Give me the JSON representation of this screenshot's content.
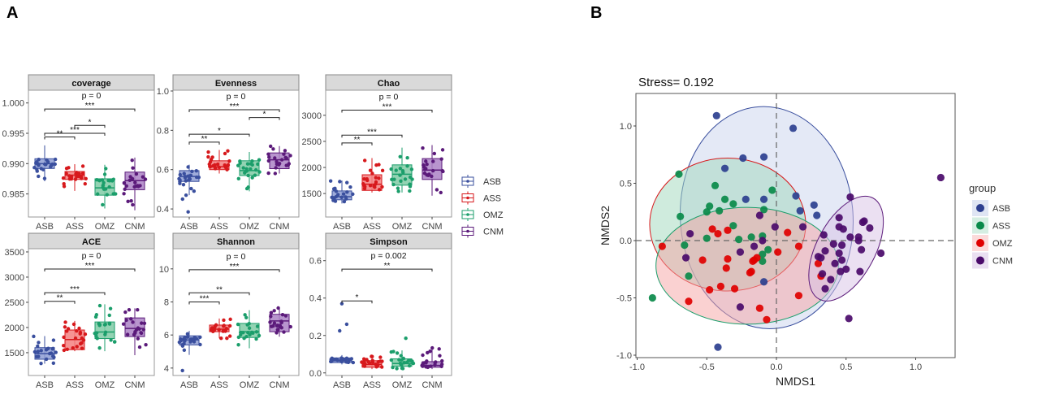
{
  "panel_labels": {
    "a": "A",
    "b": "B"
  },
  "colors": {
    "ASB": {
      "line": "#3a4f9e",
      "fill": "#8e9dd3",
      "point": "#2d3f8f"
    },
    "ASS": {
      "line": "#d7191c",
      "fill": "#f58080",
      "point": "#0a8a4a"
    },
    "OMZ": {
      "line": "#1b9e6b",
      "fill": "#80cba6",
      "point": "#e00000"
    },
    "CNM": {
      "line": "#5b1a7a",
      "fill": "#ac82c6",
      "point": "#4a0a6a"
    }
  },
  "chart_data": [
    {
      "type": "box",
      "title": "coverage",
      "categories": [
        "ASB",
        "ASS",
        "OMZ",
        "CNM"
      ],
      "ylim": [
        0.9812,
        1.0021
      ],
      "yticks": [
        0.985,
        0.99,
        0.995,
        1.0
      ],
      "ytick_labels": [
        "0.985",
        "0.990",
        "0.995",
        "1.000"
      ],
      "boxes": [
        [
          0.9871,
          0.9892,
          0.99,
          0.9908,
          0.993
        ],
        [
          0.9855,
          0.9874,
          0.9881,
          0.9887,
          0.9899
        ],
        [
          0.9826,
          0.9848,
          0.986,
          0.9875,
          0.9898
        ],
        [
          0.9823,
          0.9857,
          0.9872,
          0.9886,
          0.991
        ]
      ],
      "outliers": [
        [],
        [],
        [],
        []
      ],
      "p_label": "p = 0",
      "p_y": 1.0004,
      "comparisons": [
        {
          "from": 0,
          "to": 3,
          "label": "***",
          "y": 0.999
        },
        {
          "from": 1,
          "to": 2,
          "label": "*",
          "y": 0.9963
        },
        {
          "from": 0,
          "to": 2,
          "label": "***",
          "y": 0.995
        },
        {
          "from": 0,
          "to": 1,
          "label": "**",
          "y": 0.9944
        }
      ]
    },
    {
      "type": "box",
      "title": "Evenness",
      "categories": [
        "ASB",
        "ASS",
        "OMZ",
        "CNM"
      ],
      "ylim": [
        0.359,
        1.004
      ],
      "yticks": [
        0.4,
        0.6,
        0.8,
        1.0
      ],
      "ytick_labels": [
        "0.4",
        "0.6",
        "0.8",
        "1.0"
      ],
      "boxes": [
        [
          0.47,
          0.54,
          0.565,
          0.595,
          0.625
        ],
        [
          0.58,
          0.6,
          0.615,
          0.645,
          0.7
        ],
        [
          0.49,
          0.57,
          0.595,
          0.645,
          0.69
        ],
        [
          0.58,
          0.605,
          0.65,
          0.685,
          0.72
        ]
      ],
      "outliers": [
        [
          0.45,
          0.47,
          0.385
        ],
        [],
        [],
        []
      ],
      "p_label": "p = 0",
      "p_y": 0.94,
      "comparisons": [
        {
          "from": 0,
          "to": 3,
          "label": "***",
          "y": 0.905
        },
        {
          "from": 2,
          "to": 3,
          "label": "*",
          "y": 0.865
        },
        {
          "from": 0,
          "to": 2,
          "label": "*",
          "y": 0.78
        },
        {
          "from": 0,
          "to": 1,
          "label": "**",
          "y": 0.74
        }
      ]
    },
    {
      "type": "box",
      "title": "Chao",
      "categories": [
        "ASB",
        "ASS",
        "OMZ",
        "CNM"
      ],
      "ylim": [
        1050,
        3481
      ],
      "yticks": [
        1500,
        2000,
        2500,
        3000
      ],
      "ytick_labels": [
        "1500",
        "2000",
        "2500",
        "3000"
      ],
      "boxes": [
        [
          1310,
          1380,
          1440,
          1550,
          1750
        ],
        [
          1520,
          1560,
          1680,
          1860,
          2180
        ],
        [
          1520,
          1660,
          1870,
          2050,
          2380
        ],
        [
          1460,
          1770,
          1950,
          2170,
          2430
        ]
      ],
      "outliers": [
        [],
        [],
        [],
        []
      ],
      "p_label": "p = 0",
      "p_y": 3260,
      "comparisons": [
        {
          "from": 0,
          "to": 3,
          "label": "***",
          "y": 3100
        },
        {
          "from": 0,
          "to": 2,
          "label": "***",
          "y": 2620
        },
        {
          "from": 0,
          "to": 1,
          "label": "**",
          "y": 2470
        }
      ]
    },
    {
      "type": "box",
      "title": "ACE",
      "categories": [
        "ASB",
        "ASS",
        "OMZ",
        "CNM"
      ],
      "ylim": [
        1047,
        3564
      ],
      "yticks": [
        1500,
        2000,
        2500,
        3000,
        3500
      ],
      "ytick_labels": [
        "1500",
        "2000",
        "2500",
        "3000",
        "3500"
      ],
      "boxes": [
        [
          1280,
          1370,
          1480,
          1600,
          1830
        ],
        [
          1530,
          1560,
          1760,
          1950,
          2130
        ],
        [
          1530,
          1780,
          1910,
          2110,
          2460
        ],
        [
          1450,
          1820,
          1980,
          2190,
          2380
        ]
      ],
      "outliers": [
        [],
        [],
        [],
        []
      ],
      "p_label": "p = 0",
      "p_y": 3350,
      "comparisons": [
        {
          "from": 0,
          "to": 3,
          "label": "***",
          "y": 3160
        },
        {
          "from": 0,
          "to": 2,
          "label": "***",
          "y": 2690
        },
        {
          "from": 0,
          "to": 1,
          "label": "**",
          "y": 2520
        }
      ]
    },
    {
      "type": "box",
      "title": "Shannon",
      "categories": [
        "ASB",
        "ASS",
        "OMZ",
        "CNM"
      ],
      "ylim": [
        3.55,
        11.22
      ],
      "yticks": [
        4,
        6,
        8,
        10
      ],
      "ytick_labels": [
        "4",
        "6",
        "8",
        "10"
      ],
      "boxes": [
        [
          4.8,
          5.4,
          5.7,
          5.95,
          6.25
        ],
        [
          5.8,
          6.2,
          6.35,
          6.6,
          7.0
        ],
        [
          5.2,
          5.85,
          6.2,
          6.7,
          7.5
        ],
        [
          5.9,
          6.2,
          6.85,
          7.25,
          7.7
        ]
      ],
      "outliers": [
        [
          3.85
        ],
        [],
        [],
        []
      ],
      "p_label": "p = 0",
      "p_y": 10.7,
      "comparisons": [
        {
          "from": 0,
          "to": 3,
          "label": "***",
          "y": 9.95
        },
        {
          "from": 0,
          "to": 2,
          "label": "**",
          "y": 8.55
        },
        {
          "from": 0,
          "to": 1,
          "label": "***",
          "y": 8.0
        }
      ]
    },
    {
      "type": "box",
      "title": "Simpson",
      "categories": [
        "ASB",
        "ASS",
        "OMZ",
        "CNM"
      ],
      "ylim": [
        -0.014,
        0.664
      ],
      "yticks": [
        0.0,
        0.2,
        0.4,
        0.6
      ],
      "ytick_labels": [
        "0.0",
        "0.2",
        "0.4",
        "0.6"
      ],
      "boxes": [
        [
          0.045,
          0.055,
          0.065,
          0.08,
          0.095
        ],
        [
          0.02,
          0.03,
          0.045,
          0.065,
          0.09
        ],
        [
          0.02,
          0.035,
          0.05,
          0.075,
          0.12
        ],
        [
          0.02,
          0.03,
          0.04,
          0.06,
          0.135
        ]
      ],
      "outliers": [
        [
          0.26,
          0.225,
          0.37
        ],
        [],
        [
          0.185
        ],
        []
      ],
      "p_label": "p = 0.002",
      "p_y": 0.62,
      "comparisons": [
        {
          "from": 0,
          "to": 3,
          "label": "**",
          "y": 0.555
        },
        {
          "from": 0,
          "to": 1,
          "label": "*",
          "y": 0.385
        }
      ]
    },
    {
      "type": "scatter",
      "title": "Stress= 0.192",
      "xlabel": "NMDS1",
      "ylabel": "NMDS2",
      "xlim": [
        -1.02,
        1.28
      ],
      "ylim": [
        -1.05,
        1.29
      ],
      "xticks": [
        -1.0,
        -0.5,
        0.0,
        0.5,
        1.0
      ],
      "xtick_labels": [
        "-1.0",
        "-0.5",
        "0.0",
        "0.5",
        "1.0"
      ],
      "yticks": [
        -1.0,
        -0.5,
        0.0,
        0.5,
        1.0
      ],
      "ytick_labels": [
        "-1.0",
        "-0.5",
        "0.0",
        "0.5",
        "1.0"
      ],
      "reference_lines": {
        "x": 0,
        "y": 0,
        "style": "dashed"
      },
      "legend": {
        "title": "group",
        "position": "right"
      },
      "series": [
        {
          "name": "ASB",
          "ellipse": {
            "cx": -0.07,
            "cy": 0.2,
            "rx": 0.62,
            "ry": 0.97
          },
          "points": [
            [
              -0.43,
              1.09
            ],
            [
              0.12,
              0.98
            ],
            [
              -0.24,
              0.72
            ],
            [
              -0.09,
              0.73
            ],
            [
              -0.37,
              0.63
            ],
            [
              -0.22,
              0.36
            ],
            [
              -0.09,
              0.36
            ],
            [
              0.14,
              0.39
            ],
            [
              0.17,
              0.26
            ],
            [
              0.27,
              0.31
            ],
            [
              0.29,
              0.22
            ],
            [
              -0.42,
              -0.93
            ],
            [
              -0.09,
              -0.36
            ]
          ]
        },
        {
          "name": "ASS",
          "ellipse": {
            "cx": -0.35,
            "cy": 0.14,
            "rx": 0.56,
            "ry": 0.58
          },
          "points": [
            [
              -0.7,
              0.58
            ],
            [
              -0.44,
              0.48
            ],
            [
              -0.03,
              0.44
            ],
            [
              -0.37,
              0.36
            ],
            [
              -0.31,
              0.32
            ],
            [
              -0.48,
              0.3
            ],
            [
              -0.5,
              0.25
            ],
            [
              -0.41,
              0.26
            ],
            [
              -0.09,
              0.27
            ],
            [
              -0.69,
              0.21
            ],
            [
              -0.31,
              0.13
            ],
            [
              -0.5,
              0.02
            ],
            [
              -0.27,
              0.01
            ],
            [
              -0.18,
              0.03
            ],
            [
              -0.1,
              0.04
            ],
            [
              -0.06,
              -0.08
            ],
            [
              -0.1,
              -0.12
            ],
            [
              -0.1,
              -0.18
            ],
            [
              -0.66,
              -0.04
            ],
            [
              -0.63,
              -0.31
            ],
            [
              -0.89,
              -0.5
            ]
          ]
        },
        {
          "name": "OMZ",
          "ellipse": {
            "cx": -0.21,
            "cy": -0.22,
            "rx": 0.655,
            "ry": 0.51
          },
          "points": [
            [
              -0.82,
              -0.05
            ],
            [
              -0.46,
              0.1
            ],
            [
              -0.42,
              0.06
            ],
            [
              -0.35,
              0.09
            ],
            [
              0.08,
              0.07
            ],
            [
              0.16,
              -0.05
            ],
            [
              0.01,
              -0.1
            ],
            [
              -0.53,
              -0.17
            ],
            [
              -0.35,
              -0.16
            ],
            [
              -0.36,
              -0.24
            ],
            [
              -0.16,
              -0.17
            ],
            [
              -0.17,
              -0.18
            ],
            [
              -0.14,
              -0.15
            ],
            [
              -0.19,
              -0.28
            ],
            [
              -0.18,
              -0.27
            ],
            [
              0.3,
              -0.2
            ],
            [
              0.32,
              -0.31
            ],
            [
              -0.48,
              -0.43
            ],
            [
              -0.4,
              -0.4
            ],
            [
              -0.3,
              -0.42
            ],
            [
              -0.63,
              -0.53
            ],
            [
              0.16,
              -0.48
            ],
            [
              -0.12,
              -0.59
            ],
            [
              -0.07,
              -0.69
            ]
          ]
        },
        {
          "name": "CNM",
          "ellipse": {
            "cx": 0.5,
            "cy": -0.07,
            "rx": 0.21,
            "ry": 0.5
          },
          "points": [
            [
              1.18,
              0.55
            ],
            [
              0.53,
              0.38
            ],
            [
              0.45,
              0.2
            ],
            [
              0.62,
              0.16
            ],
            [
              0.63,
              0.17
            ],
            [
              0.67,
              0.11
            ],
            [
              0.45,
              0.12
            ],
            [
              0.48,
              0.1
            ],
            [
              0.53,
              0.03
            ],
            [
              0.59,
              0.03
            ],
            [
              0.59,
              0.0
            ],
            [
              0.34,
              0.05
            ],
            [
              0.41,
              -0.03
            ],
            [
              0.47,
              -0.04
            ],
            [
              0.61,
              -0.08
            ],
            [
              0.75,
              -0.11
            ],
            [
              0.35,
              -0.09
            ],
            [
              0.45,
              -0.11
            ],
            [
              0.3,
              -0.14
            ],
            [
              0.32,
              -0.15
            ],
            [
              0.42,
              -0.2
            ],
            [
              0.47,
              -0.17
            ],
            [
              0.5,
              -0.25
            ],
            [
              0.46,
              -0.27
            ],
            [
              0.6,
              -0.27
            ],
            [
              0.33,
              -0.29
            ],
            [
              0.39,
              -0.34
            ],
            [
              0.35,
              -0.42
            ],
            [
              0.52,
              -0.68
            ],
            [
              -0.62,
              0.06
            ],
            [
              -0.65,
              -0.15
            ],
            [
              -0.12,
              0.22
            ],
            [
              -0.01,
              0.12
            ],
            [
              0.19,
              0.12
            ],
            [
              -0.16,
              -0.05
            ],
            [
              -0.1,
              0.0
            ],
            [
              -0.26,
              -0.1
            ],
            [
              -0.26,
              -0.58
            ]
          ]
        }
      ]
    }
  ]
}
